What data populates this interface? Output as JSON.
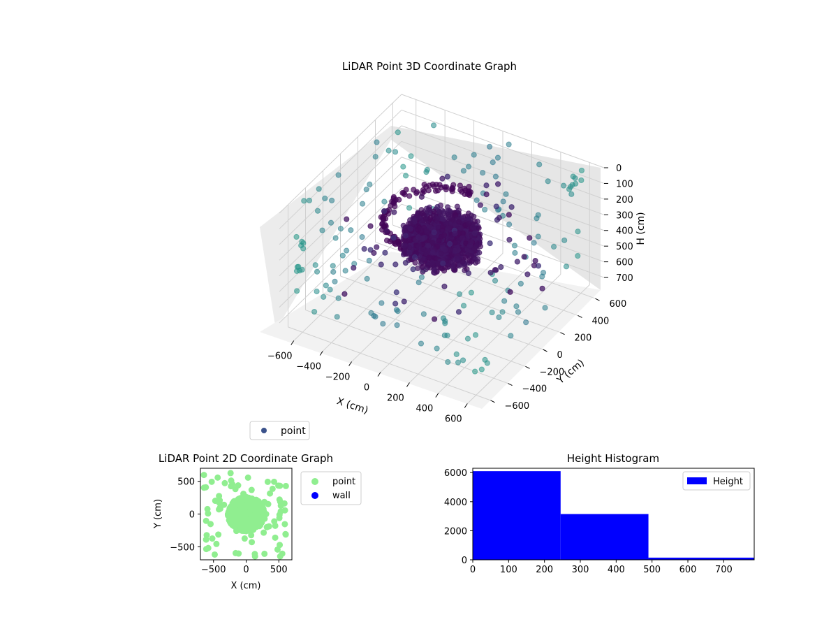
{
  "chart_data": [
    {
      "type": "scatter",
      "title": "LiDAR Point 3D Coordinate Graph",
      "xlabel": "X (cm)",
      "ylabel": "Y (cm)",
      "zlabel": "H (cm)",
      "xlim": [
        -700,
        700
      ],
      "ylim": [
        -700,
        700
      ],
      "zlim": [
        0,
        780
      ],
      "z_inverted": true,
      "grid": true,
      "x_ticks": [
        "−600",
        "−400",
        "−200",
        "0",
        "200",
        "400",
        "600"
      ],
      "y_ticks": [
        "−600",
        "−400",
        "−200",
        "0",
        "200",
        "400",
        "600"
      ],
      "z_ticks": [
        "0",
        "100",
        "200",
        "300",
        "400",
        "500",
        "600",
        "700"
      ],
      "colormap": "viridis",
      "legend": {
        "placement": "bottom-left",
        "entries": [
          "point"
        ]
      },
      "series": [
        {
          "name": "point",
          "description_samples": "dense cluster around origin radius ~200 at H 200-400, ring radius ~300 at H ~150-250, sparse points near walls at H 0-600",
          "x": [
            0,
            50,
            -80,
            120,
            -150,
            180,
            -200,
            220,
            -40,
            90,
            -260,
            260,
            -300,
            310,
            0,
            -350,
            360,
            -400,
            420,
            -520,
            540,
            -620,
            640,
            600,
            -600,
            300,
            -300,
            500,
            -500,
            100,
            -100
          ],
          "y": [
            0,
            60,
            -90,
            110,
            140,
            -160,
            40,
            -30,
            200,
            -210,
            150,
            -120,
            250,
            -260,
            -300,
            400,
            -380,
            500,
            -480,
            560,
            -560,
            620,
            -600,
            300,
            -300,
            600,
            -600,
            100,
            -100,
            650,
            -650
          ],
          "z": [
            300,
            320,
            280,
            340,
            260,
            300,
            350,
            310,
            200,
            180,
            220,
            240,
            180,
            200,
            160,
            100,
            120,
            80,
            60,
            40,
            20,
            30,
            10,
            500,
            520,
            450,
            480,
            550,
            580,
            600,
            620
          ]
        }
      ]
    },
    {
      "type": "scatter",
      "title": "LiDAR Point 2D Coordinate Graph",
      "xlabel": "X (cm)",
      "ylabel": "Y (cm)",
      "xlim": [
        -700,
        700
      ],
      "ylim": [
        -700,
        700
      ],
      "x_ticks": [
        "−500",
        "0",
        "500"
      ],
      "y_ticks": [
        "500",
        "0",
        "−500"
      ],
      "legend": {
        "placement": "right",
        "entries": [
          "point",
          "wall"
        ]
      },
      "colors": {
        "point": "#90ee90",
        "wall": "#0000ff"
      },
      "series": [
        {
          "name": "point",
          "cluster_center": [
            0,
            0
          ],
          "cluster_radius": 250,
          "scatter_range": 650
        },
        {
          "name": "wall",
          "values": []
        }
      ]
    },
    {
      "type": "bar",
      "title": "Height Histogram",
      "xlim": [
        0,
        785
      ],
      "ylim": [
        0,
        6300
      ],
      "x_ticks": [
        "0",
        "100",
        "200",
        "300",
        "400",
        "500",
        "600",
        "700"
      ],
      "y_ticks": [
        "0",
        "2000",
        "4000",
        "6000"
      ],
      "legend": {
        "placement": "top-right",
        "entries": [
          "Height"
        ]
      },
      "color": "#0000ff",
      "series": [
        {
          "name": "Height",
          "bins": [
            [
              0,
              245,
              6100
            ],
            [
              245,
              490,
              3150
            ],
            [
              490,
              785,
              150
            ]
          ]
        }
      ]
    }
  ]
}
